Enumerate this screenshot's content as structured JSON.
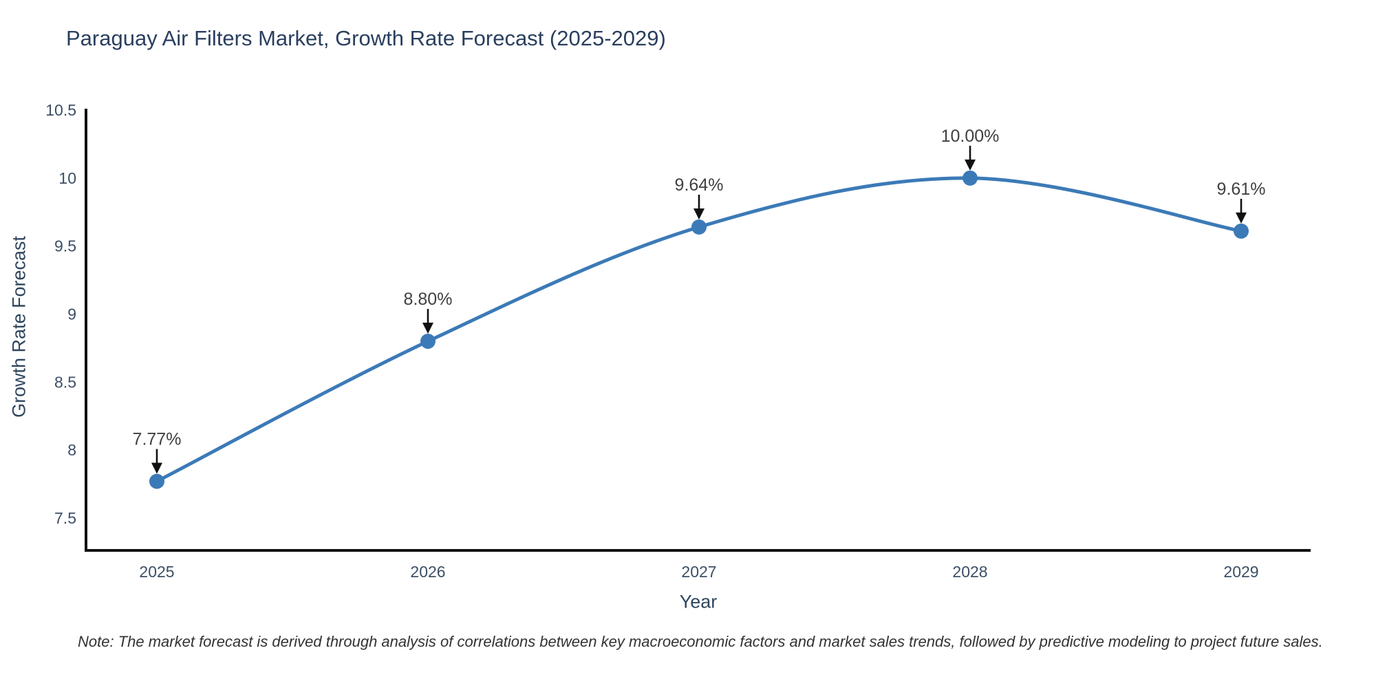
{
  "title": "Paraguay Air Filters Market, Growth Rate Forecast (2025-2029)",
  "note": "Note: The market forecast is derived through analysis of correlations between key macroeconomic factors and market sales trends, followed by predictive modeling to project future sales.",
  "chart_data": {
    "type": "line",
    "title": "Paraguay Air Filters Market, Growth Rate Forecast (2025-2029)",
    "xlabel": "Year",
    "ylabel": "Growth Rate Forecast",
    "categories": [
      "2025",
      "2026",
      "2027",
      "2028",
      "2029"
    ],
    "values": [
      7.77,
      8.8,
      9.64,
      10.0,
      9.61
    ],
    "point_labels": [
      "7.77%",
      "8.80%",
      "9.64%",
      "10.00%",
      "9.61%"
    ],
    "yticks": [
      7.5,
      8,
      8.5,
      9,
      9.5,
      10,
      10.5
    ],
    "ylim": [
      7.5,
      10.5
    ],
    "line_shape": "spline",
    "grid": false,
    "legend": "none",
    "annotation_arrows": true,
    "colors": {
      "line": "#3c7ab7",
      "marker": "#3c7ab7",
      "axis": "#111111",
      "arrow": "#111111",
      "title_text": "#2a3f5f",
      "axis_title_text": "#2f455e",
      "tick_text": "#3d4f65",
      "annotation_text": "#404040",
      "note_text": "#333333",
      "background": "#ffffff"
    }
  }
}
